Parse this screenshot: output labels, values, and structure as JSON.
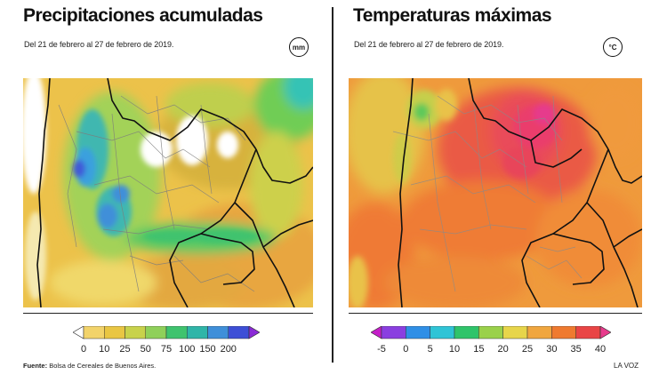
{
  "left_panel": {
    "title": "Precipitaciones acumuladas",
    "subtitle": "Del 21 de febrero al 27 de febrero de 2019.",
    "unit": "mm",
    "legend": {
      "labels": [
        "0",
        "10",
        "25",
        "50",
        "75",
        "100",
        "150",
        "200"
      ],
      "colors": [
        "#ffffff",
        "#f2d36a",
        "#e9c643",
        "#c8d24b",
        "#8fd05a",
        "#3fc36e",
        "#2fb5a8",
        "#3f8fd9",
        "#3d4fd6",
        "#8a2ad6"
      ]
    }
  },
  "right_panel": {
    "title": "Temperaturas máximas",
    "subtitle": "Del 21 de febrero al 27 de febrero de 2019.",
    "unit": "°C",
    "legend": {
      "labels": [
        "-5",
        "0",
        "5",
        "10",
        "15",
        "20",
        "25",
        "30",
        "35",
        "40"
      ],
      "colors": [
        "#c41ec8",
        "#8a3fe0",
        "#2f8fe6",
        "#2fc4d6",
        "#2fc46a",
        "#9ad14a",
        "#e7d54a",
        "#f0a63f",
        "#ef7a2f",
        "#e94545",
        "#e83a8c"
      ]
    }
  },
  "footer": {
    "source_label": "Fuente:",
    "source_text": "Bolsa de Cereales de Buenos Aires.",
    "credit": "LA VOZ"
  }
}
